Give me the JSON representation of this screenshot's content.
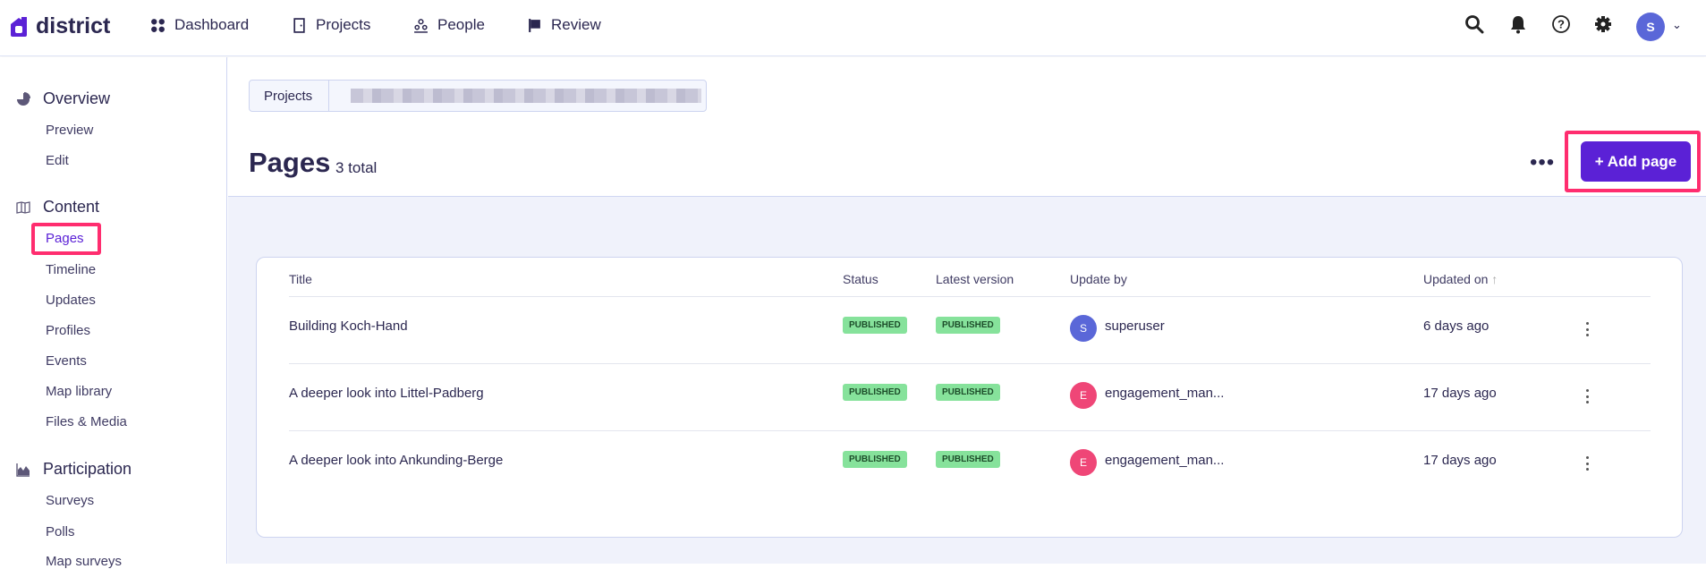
{
  "app": {
    "name": "district",
    "brand_color": "#5b21d6"
  },
  "topnav": [
    {
      "label": "Dashboard",
      "icon": "grid-icon"
    },
    {
      "label": "Projects",
      "icon": "door-icon"
    },
    {
      "label": "People",
      "icon": "people-icon"
    },
    {
      "label": "Review",
      "icon": "flag-icon"
    }
  ],
  "user": {
    "initial": "S",
    "avatar_color": "#5a67d8"
  },
  "sidebar": {
    "sections": [
      {
        "label": "Overview",
        "icon": "pie-chart-icon",
        "items": [
          "Preview",
          "Edit"
        ]
      },
      {
        "label": "Content",
        "icon": "book-icon",
        "items": [
          "Pages",
          "Timeline",
          "Updates",
          "Profiles",
          "Events",
          "Map library",
          "Files & Media"
        ]
      },
      {
        "label": "Participation",
        "icon": "area-chart-icon",
        "items": [
          "Surveys",
          "Polls",
          "Map surveys"
        ]
      }
    ],
    "active": "Pages"
  },
  "breadcrumb": {
    "first": "Projects"
  },
  "page": {
    "title": "Pages",
    "count": "3 total",
    "add_label": "+ Add page",
    "more_label": "•••"
  },
  "table": {
    "columns": [
      "Title",
      "Status",
      "Latest version",
      "Update by",
      "Updated on"
    ],
    "sort_indicator": "↑",
    "rows": [
      {
        "title": "Building Koch-Hand",
        "status": "PUBLISHED",
        "version": "PUBLISHED",
        "user": "superuser",
        "initial": "S",
        "color": "#5a67d8",
        "updated": "6 days ago"
      },
      {
        "title": "A deeper look into Littel-Padberg",
        "status": "PUBLISHED",
        "version": "PUBLISHED",
        "user": "engagement_man...",
        "initial": "E",
        "color": "#ef4677",
        "updated": "17 days ago"
      },
      {
        "title": "A deeper look into Ankunding-Berge",
        "status": "PUBLISHED",
        "version": "PUBLISHED",
        "user": "engagement_man...",
        "initial": "E",
        "color": "#ef4677",
        "updated": "17 days ago"
      }
    ]
  },
  "highlight_color": "#ff2d6f"
}
